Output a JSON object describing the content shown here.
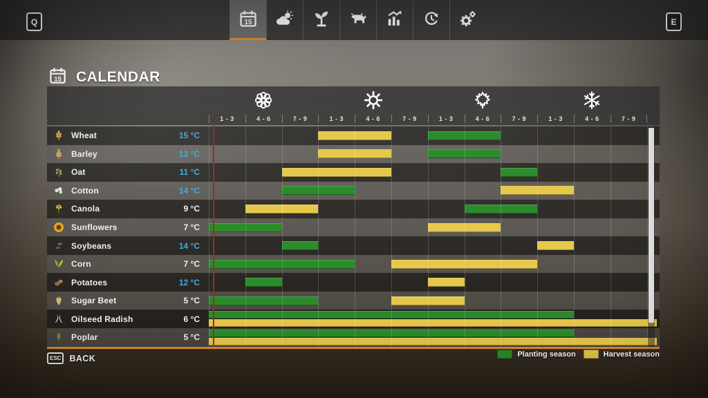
{
  "topbar": {
    "left_key": "Q",
    "right_key": "E",
    "tabs": [
      {
        "name": "calendar",
        "icon": "calendar-icon",
        "active": true
      },
      {
        "name": "weather",
        "icon": "weather-icon",
        "active": false
      },
      {
        "name": "crops",
        "icon": "sapling-icon",
        "active": false
      },
      {
        "name": "animals",
        "icon": "cow-icon",
        "active": false
      },
      {
        "name": "statistics",
        "icon": "chart-icon",
        "active": false
      },
      {
        "name": "economy",
        "icon": "economy-icon",
        "active": false
      },
      {
        "name": "settings",
        "icon": "gear-icon",
        "active": false
      }
    ]
  },
  "page": {
    "title": "CALENDAR",
    "title_icon": "calendar-icon"
  },
  "calendar": {
    "seasons": [
      {
        "name": "spring",
        "icon": "blossom-icon",
        "periods": [
          "1 - 3",
          "4 - 6",
          "7 - 9"
        ]
      },
      {
        "name": "summer",
        "icon": "sun-icon",
        "periods": [
          "1 - 3",
          "4 - 6",
          "7 - 9"
        ]
      },
      {
        "name": "autumn",
        "icon": "maple-leaf-icon",
        "periods": [
          "1 - 3",
          "4 - 6",
          "7 - 9"
        ]
      },
      {
        "name": "winter",
        "icon": "snowflake-icon",
        "periods": [
          "1 - 3",
          "4 - 6",
          "7 - 9"
        ]
      }
    ],
    "rows": [
      {
        "crop": "Wheat",
        "icon": "wheat-icon",
        "temp": "15 °C",
        "temp_highlight": true,
        "split": false,
        "bars": [
          {
            "kind": "harvest",
            "from": 4,
            "to": 5
          },
          {
            "kind": "planting",
            "from": 7,
            "to": 8
          }
        ]
      },
      {
        "crop": "Barley",
        "icon": "barley-icon",
        "temp": "13 °C",
        "temp_highlight": true,
        "split": false,
        "bars": [
          {
            "kind": "harvest",
            "from": 4,
            "to": 5
          },
          {
            "kind": "planting",
            "from": 7,
            "to": 8
          }
        ]
      },
      {
        "crop": "Oat",
        "icon": "oat-icon",
        "temp": "11 °C",
        "temp_highlight": true,
        "split": false,
        "bars": [
          {
            "kind": "harvest",
            "from": 3,
            "to": 5
          },
          {
            "kind": "planting",
            "from": 9,
            "to": 9
          }
        ]
      },
      {
        "crop": "Cotton",
        "icon": "cotton-icon",
        "temp": "14 °C",
        "temp_highlight": true,
        "split": false,
        "bars": [
          {
            "kind": "planting",
            "from": 3,
            "to": 4
          },
          {
            "kind": "harvest",
            "from": 9,
            "to": 10
          }
        ]
      },
      {
        "crop": "Canola",
        "icon": "canola-icon",
        "temp": "9 °C",
        "temp_highlight": false,
        "split": false,
        "bars": [
          {
            "kind": "harvest",
            "from": 2,
            "to": 3
          },
          {
            "kind": "planting",
            "from": 8,
            "to": 9
          }
        ]
      },
      {
        "crop": "Sunflowers",
        "icon": "sunflower-icon",
        "temp": "7 °C",
        "temp_highlight": false,
        "split": false,
        "bars": [
          {
            "kind": "planting",
            "from": 1,
            "to": 2
          },
          {
            "kind": "harvest",
            "from": 7,
            "to": 8
          }
        ]
      },
      {
        "crop": "Soybeans",
        "icon": "soybeans-icon",
        "temp": "14 °C",
        "temp_highlight": true,
        "split": false,
        "bars": [
          {
            "kind": "planting",
            "from": 3,
            "to": 3
          },
          {
            "kind": "harvest",
            "from": 10,
            "to": 10
          }
        ]
      },
      {
        "crop": "Corn",
        "icon": "corn-icon",
        "temp": "7 °C",
        "temp_highlight": false,
        "split": false,
        "bars": [
          {
            "kind": "planting",
            "from": 1,
            "to": 4
          },
          {
            "kind": "harvest",
            "from": 6,
            "to": 9
          }
        ]
      },
      {
        "crop": "Potatoes",
        "icon": "potatoes-icon",
        "temp": "12 °C",
        "temp_highlight": true,
        "split": false,
        "bars": [
          {
            "kind": "planting",
            "from": 2,
            "to": 2
          },
          {
            "kind": "harvest",
            "from": 7,
            "to": 7
          }
        ]
      },
      {
        "crop": "Sugar Beet",
        "icon": "sugar-beet-icon",
        "temp": "5 °C",
        "temp_highlight": false,
        "split": false,
        "bars": [
          {
            "kind": "planting",
            "from": 1,
            "to": 3
          },
          {
            "kind": "harvest",
            "from": 6,
            "to": 7
          }
        ]
      },
      {
        "crop": "Oilseed Radish",
        "icon": "oilseed-radish-icon",
        "temp": "6 °C",
        "temp_highlight": false,
        "split": true,
        "bars": [
          {
            "kind": "planting",
            "from": 1,
            "to": 10
          },
          {
            "kind": "harvest",
            "from": 1,
            "to": 12
          }
        ]
      },
      {
        "crop": "Poplar",
        "icon": "poplar-icon",
        "temp": "5 °C",
        "temp_highlight": false,
        "split": true,
        "bars": [
          {
            "kind": "planting",
            "from": 1,
            "to": 10
          },
          {
            "kind": "harvest",
            "from": 1,
            "to": 12
          }
        ]
      }
    ],
    "columns_per_season": 3,
    "total_columns": 12
  },
  "legend": [
    {
      "label": "Planting season",
      "color": "#2b8c2b"
    },
    {
      "label": "Harvest season",
      "color": "#e6c84b"
    }
  ],
  "footer": {
    "esc_key": "ESC",
    "back_label": "BACK"
  },
  "colors": {
    "planting_green": "#2b8c2b",
    "harvest_yellow": "#e6c84b",
    "accent_orange": "#e1892a",
    "temp_blue": "#45aae2",
    "current_day_red": "#a52a1c"
  }
}
